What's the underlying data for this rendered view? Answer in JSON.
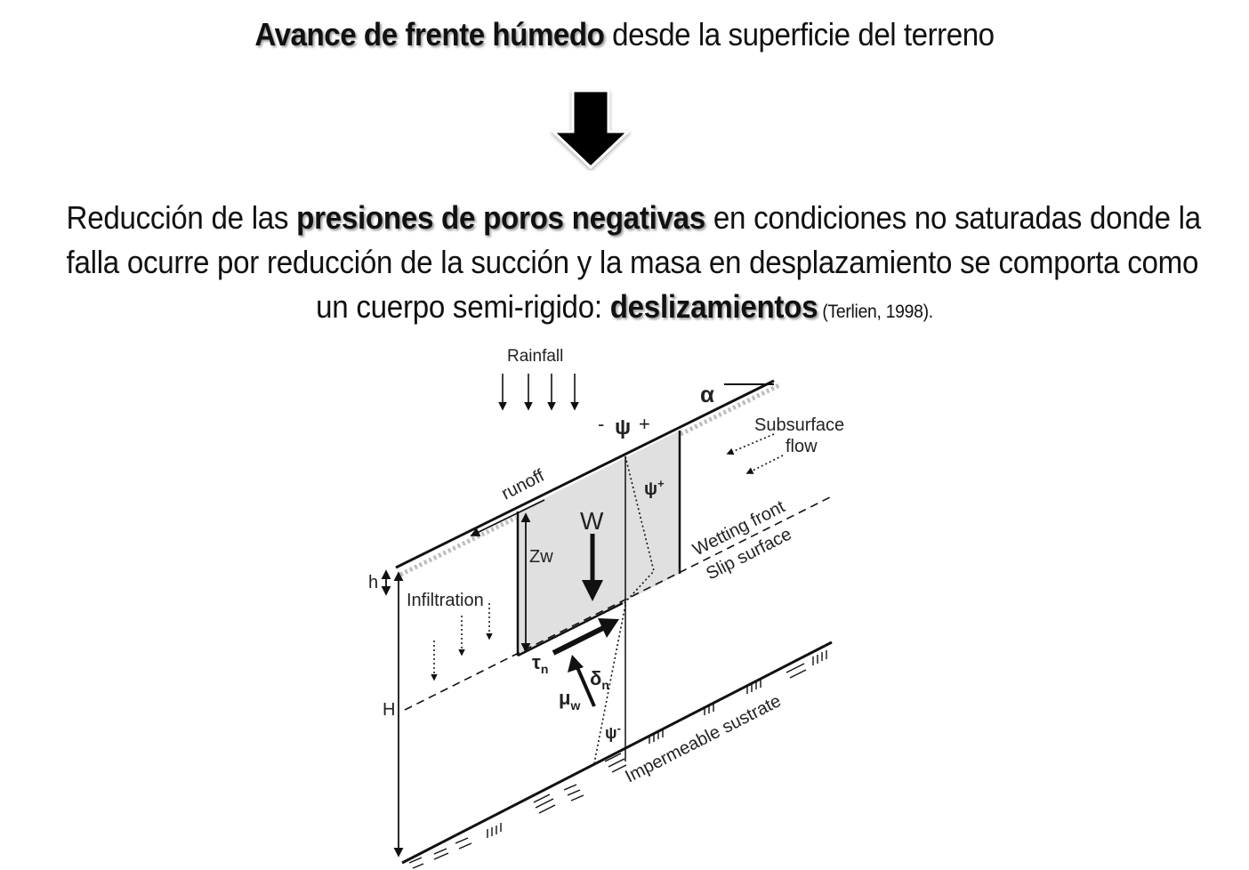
{
  "title": {
    "bold": "Avance de frente húmedo",
    "rest": " desde la superficie del terreno"
  },
  "paragraph": {
    "line1_a": "Reducción de las ",
    "line1_bold": "presiones de poros negativas",
    "line1_b": " en condiciones no saturadas donde la",
    "line2": "falla ocurre por reducción de la succión y la masa en desplazamiento se comporta como",
    "line3_a": "un cuerpo semi-rigido: ",
    "line3_bold": "deslizamientos",
    "citation": " (Terlien, 1998)."
  },
  "diagram": {
    "rainfall": "Rainfall",
    "alpha": "α",
    "psi_minus": "-",
    "psi": "ψ",
    "psi_plus_sign": "+",
    "subsurface": "Subsurface",
    "flow": "flow",
    "psi_plus": "ψ",
    "psi_plus_sup": "+",
    "runoff": "runoff",
    "W": "W",
    "Zw": "Zw",
    "wetting_front": "Wetting front",
    "slip_surface": "Slip surface",
    "h": "h",
    "infiltration": "Infiltration",
    "tau": "τ",
    "tau_sub": "n",
    "delta": "δ",
    "delta_sub": "n",
    "mu": "μ",
    "mu_sub": "w",
    "psi_minus_label": "ψ",
    "psi_minus_sup": "-",
    "H": "H",
    "impermeable": "Impermeable sustrate"
  }
}
